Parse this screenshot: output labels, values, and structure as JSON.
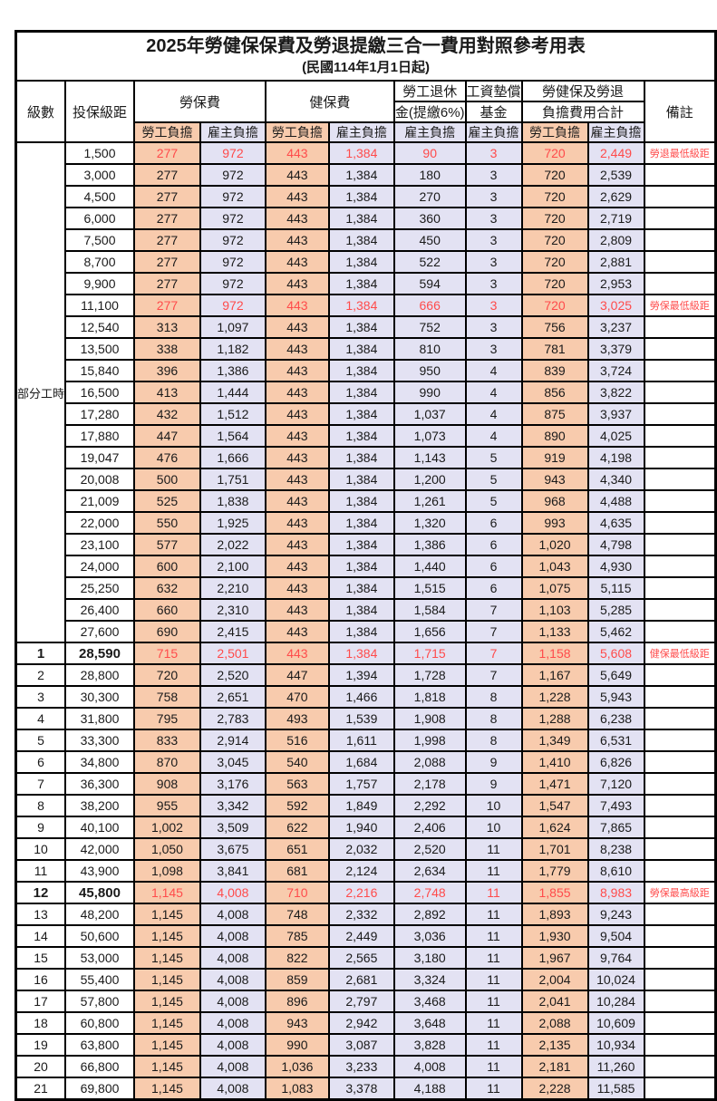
{
  "title": "2025年勞健保保費及勞退提繳三合一費用對照參考用表",
  "subtitle": "(民國114年1月1日起)",
  "colors": {
    "employee_column_bg": "#F8CBAD",
    "employer_column_bg": "#E3E2F3",
    "highlight_text": "#FF4B4B",
    "border": "#000000"
  },
  "headers": {
    "level": "級數",
    "bracket": "投保級距",
    "labor_insurance": "勞保費",
    "health_insurance": "健保費",
    "pension_line1": "勞工退休",
    "pension_line2": "金(提繳6%)",
    "wage_fund_line1": "工資墊償",
    "wage_fund_line2": "基金",
    "total_line1": "勞健保及勞退",
    "total_line2": "負擔費用合計",
    "employee": "勞工負擔",
    "employer": "雇主負擔",
    "note": "備註"
  },
  "value_column_kinds": [
    "emp",
    "er",
    "emp",
    "er",
    "er",
    "er",
    "emp",
    "er"
  ],
  "table": {
    "part_time_label": "部分工時",
    "part_time_rowspan": 23,
    "rows": [
      {
        "level": null,
        "bracket": "1,500",
        "values": [
          "277",
          "972",
          "443",
          "1,384",
          "90",
          "3",
          "720",
          "2,449"
        ],
        "note": "勞退最低級距",
        "red": true,
        "bold": false
      },
      {
        "level": null,
        "bracket": "3,000",
        "values": [
          "277",
          "972",
          "443",
          "1,384",
          "180",
          "3",
          "720",
          "2,539"
        ],
        "note": "",
        "red": false,
        "bold": false
      },
      {
        "level": null,
        "bracket": "4,500",
        "values": [
          "277",
          "972",
          "443",
          "1,384",
          "270",
          "3",
          "720",
          "2,629"
        ],
        "note": "",
        "red": false,
        "bold": false
      },
      {
        "level": null,
        "bracket": "6,000",
        "values": [
          "277",
          "972",
          "443",
          "1,384",
          "360",
          "3",
          "720",
          "2,719"
        ],
        "note": "",
        "red": false,
        "bold": false
      },
      {
        "level": null,
        "bracket": "7,500",
        "values": [
          "277",
          "972",
          "443",
          "1,384",
          "450",
          "3",
          "720",
          "2,809"
        ],
        "note": "",
        "red": false,
        "bold": false
      },
      {
        "level": null,
        "bracket": "8,700",
        "values": [
          "277",
          "972",
          "443",
          "1,384",
          "522",
          "3",
          "720",
          "2,881"
        ],
        "note": "",
        "red": false,
        "bold": false
      },
      {
        "level": null,
        "bracket": "9,900",
        "values": [
          "277",
          "972",
          "443",
          "1,384",
          "594",
          "3",
          "720",
          "2,953"
        ],
        "note": "",
        "red": false,
        "bold": false
      },
      {
        "level": null,
        "bracket": "11,100",
        "values": [
          "277",
          "972",
          "443",
          "1,384",
          "666",
          "3",
          "720",
          "3,025"
        ],
        "note": "勞保最低級距",
        "red": true,
        "bold": false
      },
      {
        "level": null,
        "bracket": "12,540",
        "values": [
          "313",
          "1,097",
          "443",
          "1,384",
          "752",
          "3",
          "756",
          "3,237"
        ],
        "note": "",
        "red": false,
        "bold": false
      },
      {
        "level": null,
        "bracket": "13,500",
        "values": [
          "338",
          "1,182",
          "443",
          "1,384",
          "810",
          "3",
          "781",
          "3,379"
        ],
        "note": "",
        "red": false,
        "bold": false
      },
      {
        "level": null,
        "bracket": "15,840",
        "values": [
          "396",
          "1,386",
          "443",
          "1,384",
          "950",
          "4",
          "839",
          "3,724"
        ],
        "note": "",
        "red": false,
        "bold": false
      },
      {
        "level": null,
        "bracket": "16,500",
        "values": [
          "413",
          "1,444",
          "443",
          "1,384",
          "990",
          "4",
          "856",
          "3,822"
        ],
        "note": "",
        "red": false,
        "bold": false
      },
      {
        "level": null,
        "bracket": "17,280",
        "values": [
          "432",
          "1,512",
          "443",
          "1,384",
          "1,037",
          "4",
          "875",
          "3,937"
        ],
        "note": "",
        "red": false,
        "bold": false
      },
      {
        "level": null,
        "bracket": "17,880",
        "values": [
          "447",
          "1,564",
          "443",
          "1,384",
          "1,073",
          "4",
          "890",
          "4,025"
        ],
        "note": "",
        "red": false,
        "bold": false
      },
      {
        "level": null,
        "bracket": "19,047",
        "values": [
          "476",
          "1,666",
          "443",
          "1,384",
          "1,143",
          "5",
          "919",
          "4,198"
        ],
        "note": "",
        "red": false,
        "bold": false
      },
      {
        "level": null,
        "bracket": "20,008",
        "values": [
          "500",
          "1,751",
          "443",
          "1,384",
          "1,200",
          "5",
          "943",
          "4,340"
        ],
        "note": "",
        "red": false,
        "bold": false
      },
      {
        "level": null,
        "bracket": "21,009",
        "values": [
          "525",
          "1,838",
          "443",
          "1,384",
          "1,261",
          "5",
          "968",
          "4,488"
        ],
        "note": "",
        "red": false,
        "bold": false
      },
      {
        "level": null,
        "bracket": "22,000",
        "values": [
          "550",
          "1,925",
          "443",
          "1,384",
          "1,320",
          "6",
          "993",
          "4,635"
        ],
        "note": "",
        "red": false,
        "bold": false
      },
      {
        "level": null,
        "bracket": "23,100",
        "values": [
          "577",
          "2,022",
          "443",
          "1,384",
          "1,386",
          "6",
          "1,020",
          "4,798"
        ],
        "note": "",
        "red": false,
        "bold": false
      },
      {
        "level": null,
        "bracket": "24,000",
        "values": [
          "600",
          "2,100",
          "443",
          "1,384",
          "1,440",
          "6",
          "1,043",
          "4,930"
        ],
        "note": "",
        "red": false,
        "bold": false
      },
      {
        "level": null,
        "bracket": "25,250",
        "values": [
          "632",
          "2,210",
          "443",
          "1,384",
          "1,515",
          "6",
          "1,075",
          "5,115"
        ],
        "note": "",
        "red": false,
        "bold": false
      },
      {
        "level": null,
        "bracket": "26,400",
        "values": [
          "660",
          "2,310",
          "443",
          "1,384",
          "1,584",
          "7",
          "1,103",
          "5,285"
        ],
        "note": "",
        "red": false,
        "bold": false
      },
      {
        "level": null,
        "bracket": "27,600",
        "values": [
          "690",
          "2,415",
          "443",
          "1,384",
          "1,656",
          "7",
          "1,133",
          "5,462"
        ],
        "note": "",
        "red": false,
        "bold": false
      },
      {
        "level": "1",
        "bracket": "28,590",
        "values": [
          "715",
          "2,501",
          "443",
          "1,384",
          "1,715",
          "7",
          "1,158",
          "5,608"
        ],
        "note": "健保最低級距",
        "red": true,
        "bold": true
      },
      {
        "level": "2",
        "bracket": "28,800",
        "values": [
          "720",
          "2,520",
          "447",
          "1,394",
          "1,728",
          "7",
          "1,167",
          "5,649"
        ],
        "note": "",
        "red": false,
        "bold": false
      },
      {
        "level": "3",
        "bracket": "30,300",
        "values": [
          "758",
          "2,651",
          "470",
          "1,466",
          "1,818",
          "8",
          "1,228",
          "5,943"
        ],
        "note": "",
        "red": false,
        "bold": false
      },
      {
        "level": "4",
        "bracket": "31,800",
        "values": [
          "795",
          "2,783",
          "493",
          "1,539",
          "1,908",
          "8",
          "1,288",
          "6,238"
        ],
        "note": "",
        "red": false,
        "bold": false
      },
      {
        "level": "5",
        "bracket": "33,300",
        "values": [
          "833",
          "2,914",
          "516",
          "1,611",
          "1,998",
          "8",
          "1,349",
          "6,531"
        ],
        "note": "",
        "red": false,
        "bold": false
      },
      {
        "level": "6",
        "bracket": "34,800",
        "values": [
          "870",
          "3,045",
          "540",
          "1,684",
          "2,088",
          "9",
          "1,410",
          "6,826"
        ],
        "note": "",
        "red": false,
        "bold": false
      },
      {
        "level": "7",
        "bracket": "36,300",
        "values": [
          "908",
          "3,176",
          "563",
          "1,757",
          "2,178",
          "9",
          "1,471",
          "7,120"
        ],
        "note": "",
        "red": false,
        "bold": false
      },
      {
        "level": "8",
        "bracket": "38,200",
        "values": [
          "955",
          "3,342",
          "592",
          "1,849",
          "2,292",
          "10",
          "1,547",
          "7,493"
        ],
        "note": "",
        "red": false,
        "bold": false
      },
      {
        "level": "9",
        "bracket": "40,100",
        "values": [
          "1,002",
          "3,509",
          "622",
          "1,940",
          "2,406",
          "10",
          "1,624",
          "7,865"
        ],
        "note": "",
        "red": false,
        "bold": false
      },
      {
        "level": "10",
        "bracket": "42,000",
        "values": [
          "1,050",
          "3,675",
          "651",
          "2,032",
          "2,520",
          "11",
          "1,701",
          "8,238"
        ],
        "note": "",
        "red": false,
        "bold": false
      },
      {
        "level": "11",
        "bracket": "43,900",
        "values": [
          "1,098",
          "3,841",
          "681",
          "2,124",
          "2,634",
          "11",
          "1,779",
          "8,610"
        ],
        "note": "",
        "red": false,
        "bold": false
      },
      {
        "level": "12",
        "bracket": "45,800",
        "values": [
          "1,145",
          "4,008",
          "710",
          "2,216",
          "2,748",
          "11",
          "1,855",
          "8,983"
        ],
        "note": "勞保最高級距",
        "red": true,
        "bold": true
      },
      {
        "level": "13",
        "bracket": "48,200",
        "values": [
          "1,145",
          "4,008",
          "748",
          "2,332",
          "2,892",
          "11",
          "1,893",
          "9,243"
        ],
        "note": "",
        "red": false,
        "bold": false
      },
      {
        "level": "14",
        "bracket": "50,600",
        "values": [
          "1,145",
          "4,008",
          "785",
          "2,449",
          "3,036",
          "11",
          "1,930",
          "9,504"
        ],
        "note": "",
        "red": false,
        "bold": false
      },
      {
        "level": "15",
        "bracket": "53,000",
        "values": [
          "1,145",
          "4,008",
          "822",
          "2,565",
          "3,180",
          "11",
          "1,967",
          "9,764"
        ],
        "note": "",
        "red": false,
        "bold": false
      },
      {
        "level": "16",
        "bracket": "55,400",
        "values": [
          "1,145",
          "4,008",
          "859",
          "2,681",
          "3,324",
          "11",
          "2,004",
          "10,024"
        ],
        "note": "",
        "red": false,
        "bold": false
      },
      {
        "level": "17",
        "bracket": "57,800",
        "values": [
          "1,145",
          "4,008",
          "896",
          "2,797",
          "3,468",
          "11",
          "2,041",
          "10,284"
        ],
        "note": "",
        "red": false,
        "bold": false
      },
      {
        "level": "18",
        "bracket": "60,800",
        "values": [
          "1,145",
          "4,008",
          "943",
          "2,942",
          "3,648",
          "11",
          "2,088",
          "10,609"
        ],
        "note": "",
        "red": false,
        "bold": false
      },
      {
        "level": "19",
        "bracket": "63,800",
        "values": [
          "1,145",
          "4,008",
          "990",
          "3,087",
          "3,828",
          "11",
          "2,135",
          "10,934"
        ],
        "note": "",
        "red": false,
        "bold": false
      },
      {
        "level": "20",
        "bracket": "66,800",
        "values": [
          "1,145",
          "4,008",
          "1,036",
          "3,233",
          "4,008",
          "11",
          "2,181",
          "11,260"
        ],
        "note": "",
        "red": false,
        "bold": false
      },
      {
        "level": "21",
        "bracket": "69,800",
        "values": [
          "1,145",
          "4,008",
          "1,083",
          "3,378",
          "4,188",
          "11",
          "2,228",
          "11,585"
        ],
        "note": "",
        "red": false,
        "bold": false
      }
    ]
  }
}
